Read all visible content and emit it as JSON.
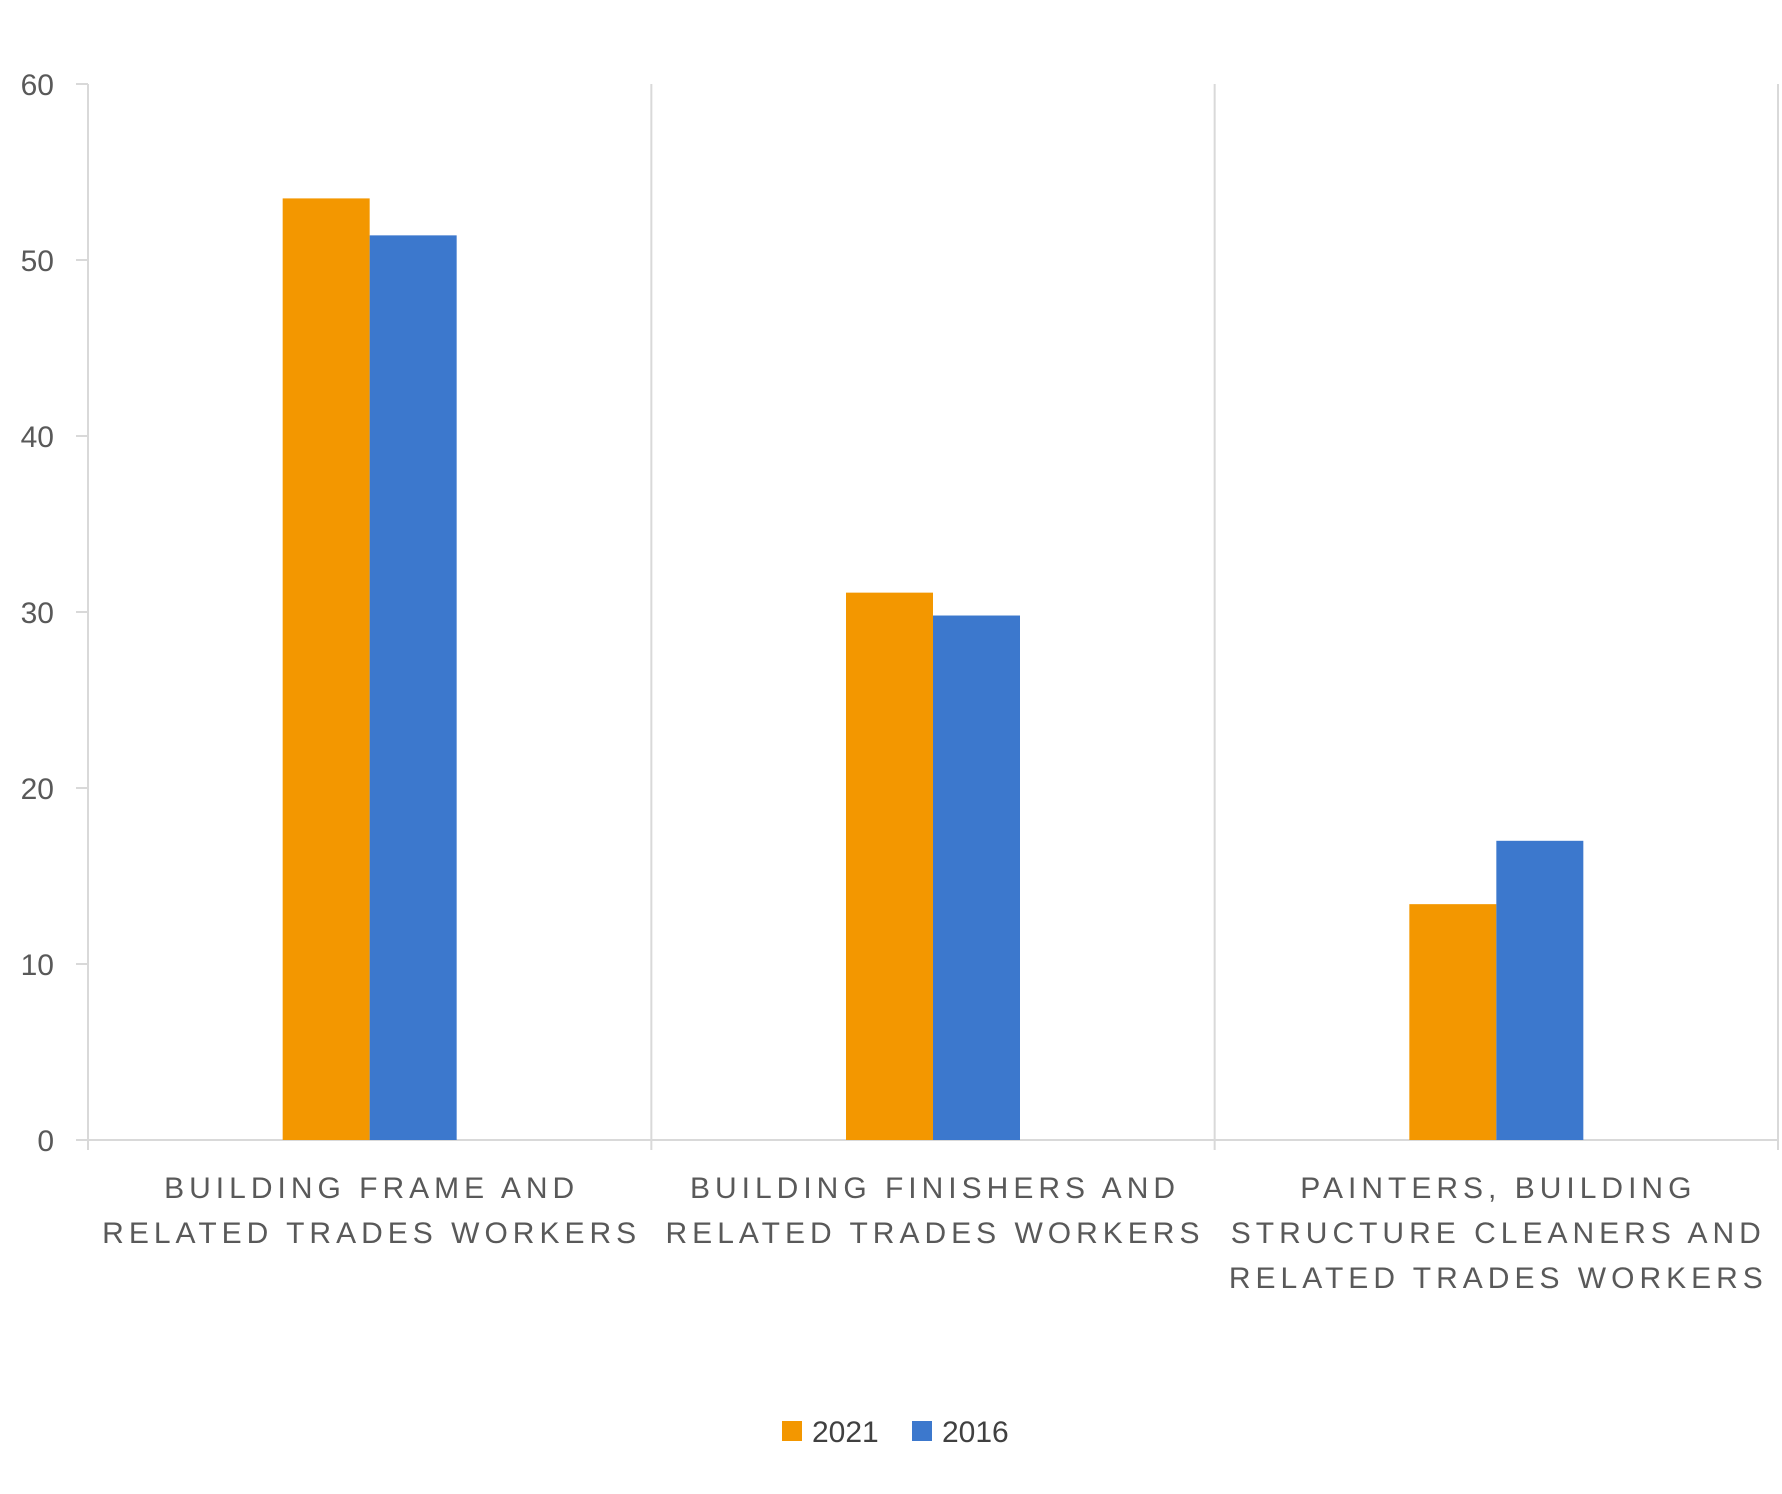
{
  "chart_data": {
    "type": "bar",
    "title": "",
    "xlabel": "",
    "ylabel": "",
    "ylim": [
      0,
      60
    ],
    "yticks": [
      0,
      10,
      20,
      30,
      40,
      50,
      60
    ],
    "categories": [
      "BUILDING FRAME AND RELATED TRADES WORKERS",
      "BUILDING FINISHERS AND RELATED TRADES WORKERS",
      "PAINTERS, BUILDING STRUCTURE CLEANERS AND RELATED TRADES WORKERS"
    ],
    "category_label_lines": [
      [
        "BUILDING FRAME AND",
        "RELATED TRADES WORKERS"
      ],
      [
        "BUILDING FINISHERS AND",
        "RELATED TRADES WORKERS"
      ],
      [
        "PAINTERS, BUILDING",
        "STRUCTURE CLEANERS AND",
        "RELATED TRADES WORKERS"
      ]
    ],
    "series": [
      {
        "name": "2021",
        "color": "#F39700",
        "values": [
          53.5,
          31.1,
          13.4
        ]
      },
      {
        "name": "2016",
        "color": "#3C78CD",
        "values": [
          51.4,
          29.8,
          17.0
        ]
      }
    ],
    "grid": "vertical category separators",
    "legend_position": "bottom-center"
  }
}
